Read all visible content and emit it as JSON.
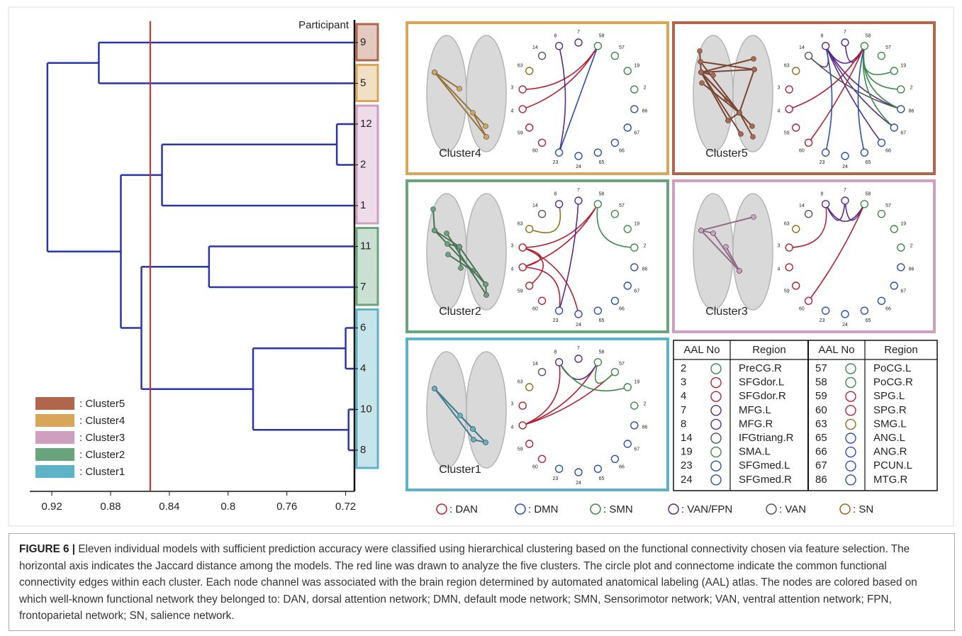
{
  "chart_data": {
    "type": "dendrogram",
    "title": "Participant",
    "leaves": [
      9,
      5,
      12,
      2,
      1,
      11,
      7,
      6,
      4,
      10,
      8
    ],
    "merges": [
      {
        "children": [
          2,
          3
        ],
        "distance": 0.726
      },
      {
        "children": [
          11,
          4
        ],
        "distance": 0.845
      },
      {
        "children": [
          5,
          6
        ],
        "distance": 0.813
      },
      {
        "children": [
          7,
          8
        ],
        "distance": 0.72
      },
      {
        "children": [
          9,
          10
        ],
        "distance": 0.718
      },
      {
        "children": [
          14,
          15
        ],
        "distance": 0.783
      },
      {
        "children": [
          13,
          16
        ],
        "distance": 0.859
      },
      {
        "children": [
          12,
          17
        ],
        "distance": 0.873
      },
      {
        "children": [
          0,
          1
        ],
        "distance": 0.888
      },
      {
        "children": [
          19,
          18
        ],
        "distance": 0.923
      }
    ],
    "cutoff": 0.853,
    "cutoff_color": "#e52421",
    "color": "#2b35a8",
    "xlim": [
      0.935,
      0.714
    ],
    "xticks": [
      0.92,
      0.88,
      0.84,
      0.8,
      0.76,
      0.72
    ],
    "clusters": [
      {
        "label": ": Cluster5",
        "color": "#b0664a",
        "leaves": [
          0
        ]
      },
      {
        "label": ": Cluster4",
        "color": "#d7a659",
        "leaves": [
          1
        ]
      },
      {
        "label": ": Cluster3",
        "color": "#cf9fc0",
        "leaves": [
          2,
          3,
          4
        ]
      },
      {
        "label": ": Cluster2",
        "color": "#6aa47d",
        "leaves": [
          5,
          6
        ]
      },
      {
        "label": ": Cluster1",
        "color": "#5fb3c6",
        "leaves": [
          7,
          8,
          9,
          10
        ]
      }
    ]
  },
  "networks": [
    {
      "label": ": DAN",
      "color": "#b22234"
    },
    {
      "label": ": DMN",
      "color": "#2a4fb0"
    },
    {
      "label": ": SMN",
      "color": "#3c8a4a"
    },
    {
      "label": ": VAN/FPN",
      "color": "#5a2a8a"
    },
    {
      "label": ": VAN",
      "color": "#555555"
    },
    {
      "label": ": SN",
      "color": "#9a6a1a"
    }
  ],
  "regions": [
    {
      "no": 2,
      "name": "PreCG.R",
      "network": 2
    },
    {
      "no": 3,
      "name": "SFGdor.L",
      "network": 0
    },
    {
      "no": 4,
      "name": "SFGdor.R",
      "network": 0
    },
    {
      "no": 7,
      "name": "MFG.L",
      "network": 3
    },
    {
      "no": 8,
      "name": "MFG.R",
      "network": 3
    },
    {
      "no": 14,
      "name": "IFGtriang.R",
      "network": 4
    },
    {
      "no": 19,
      "name": "SMA.L",
      "network": 2
    },
    {
      "no": 23,
      "name": "SFGmed.L",
      "network": 1
    },
    {
      "no": 24,
      "name": "SFGmed.R",
      "network": 1
    },
    {
      "no": 57,
      "name": "PoCG.L",
      "network": 2
    },
    {
      "no": 58,
      "name": "PoCG.R",
      "network": 2
    },
    {
      "no": 59,
      "name": "SPG.L",
      "network": 0
    },
    {
      "no": 60,
      "name": "SPG.R",
      "network": 0
    },
    {
      "no": 63,
      "name": "SMG.L",
      "network": 5
    },
    {
      "no": 65,
      "name": "ANG.L",
      "network": 1
    },
    {
      "no": 66,
      "name": "ANG.R",
      "network": 1
    },
    {
      "no": 67,
      "name": "PCUN.L",
      "network": 1
    },
    {
      "no": 86,
      "name": "MTG.R",
      "network": 1
    }
  ],
  "circle_order": [
    3,
    10,
    9,
    6,
    0,
    17,
    16,
    15,
    14,
    8,
    7,
    12,
    11,
    2,
    1,
    13,
    5,
    4
  ],
  "panels": [
    {
      "title": "Cluster4",
      "color": "#d7a659",
      "edges": [
        [
          3,
          58
        ],
        [
          4,
          58
        ],
        [
          8,
          23
        ],
        [
          23,
          58
        ]
      ]
    },
    {
      "title": "Cluster5",
      "color": "#b0664a",
      "edges": [
        [
          8,
          14
        ],
        [
          7,
          58
        ],
        [
          8,
          58
        ],
        [
          58,
          19
        ],
        [
          58,
          2
        ],
        [
          8,
          86
        ],
        [
          8,
          67
        ],
        [
          8,
          66
        ],
        [
          14,
          86
        ],
        [
          58,
          86
        ],
        [
          58,
          67
        ],
        [
          4,
          58
        ],
        [
          60,
          58
        ],
        [
          23,
          8
        ],
        [
          65,
          58
        ]
      ]
    },
    {
      "title": "Cluster2",
      "color": "#6aa47d",
      "edges": [
        [
          63,
          8
        ],
        [
          3,
          58
        ],
        [
          4,
          58
        ],
        [
          3,
          24
        ],
        [
          4,
          23
        ],
        [
          59,
          3
        ],
        [
          7,
          23
        ],
        [
          58,
          2
        ],
        [
          4,
          3
        ]
      ]
    },
    {
      "title": "Cluster3",
      "color": "#cf9fc0",
      "edges": [
        [
          3,
          8
        ],
        [
          8,
          7
        ],
        [
          7,
          58
        ],
        [
          60,
          58
        ],
        [
          8,
          58
        ]
      ]
    },
    {
      "title": "Cluster1",
      "color": "#5fb3c6",
      "edges": [
        [
          4,
          8
        ],
        [
          4,
          58
        ],
        [
          4,
          57
        ],
        [
          8,
          58
        ],
        [
          58,
          57
        ],
        [
          19,
          8
        ]
      ]
    }
  ],
  "table": {
    "headers": [
      "AAL No",
      "Region",
      "AAL No",
      "Region"
    ]
  },
  "caption": {
    "label": "FIGURE 6 |",
    "text": "Eleven individual models with sufficient prediction accuracy were classified using hierarchical clustering based on the functional connectivity chosen via feature selection. The horizontal axis indicates the Jaccard distance among the models. The red line was drawn to analyze the five clusters. The circle plot and connectome indicate the common functional connectivity edges within each cluster. Each node channel was associated with the brain region determined by automated anatomical labeling (AAL) atlas. The nodes are colored based on which well-known functional network they belonged to: DAN, dorsal attention network; DMN, default mode network; SMN, Sensorimotor network; VAN, ventral attention network; FPN, frontoparietal network; SN, salience network."
  }
}
